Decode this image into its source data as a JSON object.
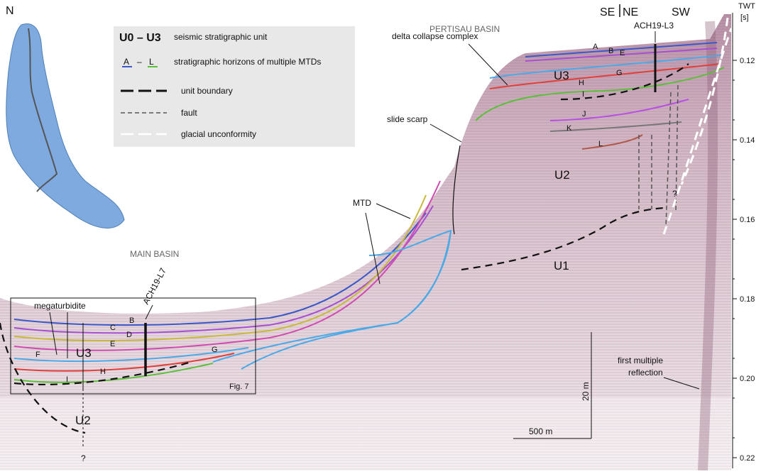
{
  "corner_label": "N",
  "axis": {
    "title": "TWT",
    "unit": "[s]",
    "ticks": [
      "0.12",
      "0.14",
      "0.16",
      "0.18",
      "0.20",
      "0.22"
    ]
  },
  "direction_labels": {
    "se": "SE",
    "ne": "NE",
    "sw": "SW"
  },
  "legend": {
    "units_symbol": "U0 – U3",
    "units_text": "seismic stratigraphic unit",
    "horizons_a": "A",
    "horizons_dash": "–",
    "horizons_l": "L",
    "horizons_text": "stratigraphic horizons of multiple MTDs",
    "unit_boundary": "unit boundary",
    "fault": "fault",
    "glacial": "glacial unconformity"
  },
  "labels": {
    "pertisau_basin": "PERTISAU BASIN",
    "main_basin": "MAIN BASIN",
    "core_l3": "ACH19-L3",
    "core_l7": "ACH19-L7",
    "delta_collapse": "delta collapse complex",
    "slide_scarp": "slide scarp",
    "mtd": "MTD",
    "megaturbidite": "megaturbidite",
    "first_multiple_1": "first multiple",
    "first_multiple_2": "reflection",
    "fig7": "Fig. 7",
    "scale_v": "20 m",
    "scale_h": "500 m",
    "question": "?"
  },
  "units": {
    "u1": "U1",
    "u2": "U2",
    "u3": "U3"
  },
  "horizon_letters": [
    "A",
    "B",
    "C",
    "D",
    "E",
    "F",
    "G",
    "H",
    "I",
    "J",
    "K",
    "L"
  ],
  "colors": {
    "lake": "#7eaadf",
    "horizon_blue": "#3b57c8",
    "horizon_green": "#5bbf3a",
    "horizon_red": "#e0403a",
    "horizon_purple": "#a64fd0",
    "horizon_cyan": "#4aa9e6",
    "horizon_gray": "#777777",
    "horizon_brown": "#b0584a",
    "seismic": "#9a6b86"
  }
}
